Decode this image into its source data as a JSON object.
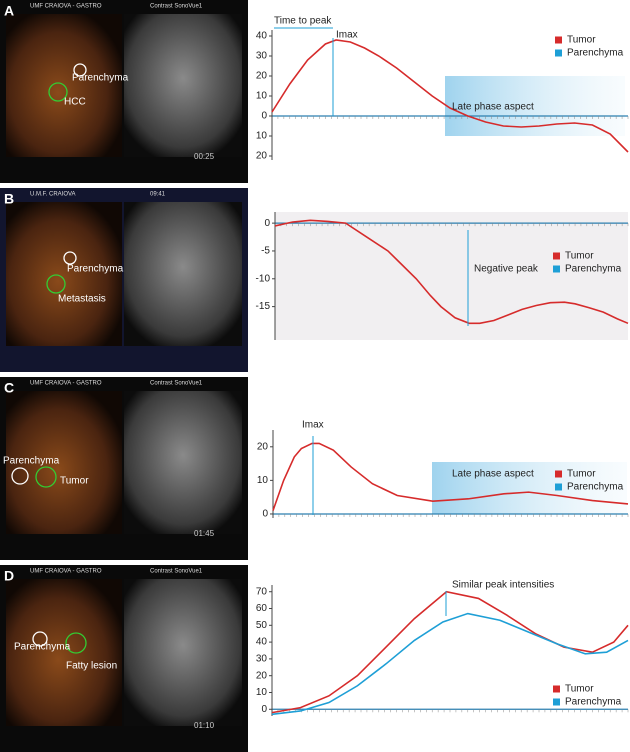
{
  "panels": [
    {
      "label": "A",
      "image": {
        "left_header": "UMF CRAIOVA - GASTRO",
        "right_header": "Contrast SonoVue1",
        "annotations": [
          "Parenchyma",
          "HCC"
        ],
        "time": "00:25"
      }
    },
    {
      "label": "B",
      "image": {
        "left_header": "U.M.F. CRAIOVA",
        "right_header": "09:41",
        "annotations": [
          "Parenchyma",
          "Metastasis"
        ]
      }
    },
    {
      "label": "C",
      "image": {
        "left_header": "UMF CRAIOVA - GASTRO",
        "right_header": "Contrast SonoVue1",
        "annotations": [
          "Parenchyma",
          "Tumor"
        ],
        "time": "01:45"
      }
    },
    {
      "label": "D",
      "image": {
        "left_header": "UMF CRAIOVA - GASTRO",
        "right_header": "Contrast SonoVue1",
        "annotations": [
          "Parenchyma",
          "Fatty lesion"
        ],
        "time": "01:10"
      }
    }
  ],
  "chart_data": [
    {
      "type": "line",
      "annotations": [
        "Time to peak",
        "Imax",
        "Late phase aspect"
      ],
      "series": [
        {
          "name": "Tumor",
          "color": "#d62b2b",
          "x": [
            0,
            5,
            10,
            15,
            18,
            22,
            26,
            30,
            35,
            40,
            45,
            50,
            55,
            60,
            65,
            70,
            75,
            80,
            85,
            90,
            95,
            100
          ],
          "values": [
            2,
            16,
            28,
            36,
            38,
            37,
            34,
            30,
            24,
            17,
            10,
            4,
            0,
            -3,
            -5,
            -5.5,
            -5,
            -4,
            -3.5,
            -4.5,
            -9,
            -18
          ]
        },
        {
          "name": "Parenchyma",
          "color": "#1e9fd6",
          "x": [],
          "values": []
        }
      ],
      "xlim": [
        0,
        100
      ],
      "ylim": [
        -22,
        43
      ],
      "yticks": [
        40,
        30,
        20,
        10,
        0,
        {
          "value": -10,
          "label": "10"
        },
        {
          "value": -20,
          "label": "20"
        }
      ]
    },
    {
      "type": "line",
      "annotations": [
        "Negative peak"
      ],
      "plot_background": "#f1eff1",
      "series": [
        {
          "name": "Tumor",
          "color": "#d62b2b",
          "x": [
            0,
            5,
            10,
            15,
            20,
            26,
            32,
            36,
            40,
            44,
            47,
            51,
            55,
            58,
            62,
            66,
            70,
            74,
            78,
            82,
            85,
            89,
            93,
            97,
            100
          ],
          "values": [
            -0.5,
            0.2,
            0.5,
            0.3,
            0,
            -2.5,
            -5,
            -7.5,
            -10,
            -13,
            -15,
            -17,
            -18,
            -18,
            -17.5,
            -16.5,
            -15.5,
            -14.8,
            -14.3,
            -14.2,
            -14.5,
            -15.2,
            -16,
            -17.2,
            -18
          ]
        },
        {
          "name": "Parenchyma",
          "color": "#1e9fd6",
          "x": [],
          "values": []
        }
      ],
      "xlim": [
        0,
        100
      ],
      "ylim": [
        -21,
        2
      ],
      "yticks": [
        0,
        -5,
        -10,
        -15
      ]
    },
    {
      "type": "line",
      "annotations": [
        "Imax",
        "Late phase aspect"
      ],
      "series": [
        {
          "name": "Tumor",
          "color": "#d62b2b",
          "x": [
            0,
            3,
            6,
            8,
            11,
            13,
            17,
            22,
            28,
            35,
            45,
            55,
            65,
            72,
            80,
            90,
            100
          ],
          "values": [
            1,
            10,
            17,
            19.5,
            21,
            21,
            19,
            14,
            9,
            5.5,
            3.8,
            4.5,
            6,
            6.5,
            5.5,
            4,
            3
          ]
        },
        {
          "name": "Parenchyma",
          "color": "#1e9fd6",
          "x": [],
          "values": []
        }
      ],
      "xlim": [
        0,
        100
      ],
      "ylim": [
        -1.2,
        25
      ],
      "yticks": [
        0,
        10,
        20
      ]
    },
    {
      "type": "line",
      "annotations": [
        "Similar peak intensities"
      ],
      "series": [
        {
          "name": "Tumor",
          "color": "#d62b2b",
          "x": [
            0,
            8,
            16,
            24,
            32,
            40,
            49,
            58,
            66,
            74,
            82,
            90,
            96,
            100
          ],
          "values": [
            -2,
            1,
            8,
            20,
            37,
            54,
            70,
            66,
            56,
            45,
            37,
            34,
            40,
            50
          ]
        },
        {
          "name": "Parenchyma",
          "color": "#1e9fd6",
          "x": [
            0,
            8,
            16,
            24,
            32,
            40,
            48,
            55,
            64,
            72,
            80,
            88,
            94,
            100
          ],
          "values": [
            -3,
            -1,
            4,
            14,
            27,
            41,
            52,
            57,
            53,
            46,
            39,
            33,
            34,
            41
          ]
        }
      ],
      "xlim": [
        0,
        100
      ],
      "ylim": [
        -4,
        74
      ],
      "yticks": [
        0,
        10,
        20,
        30,
        40,
        50,
        60,
        70
      ]
    }
  ]
}
